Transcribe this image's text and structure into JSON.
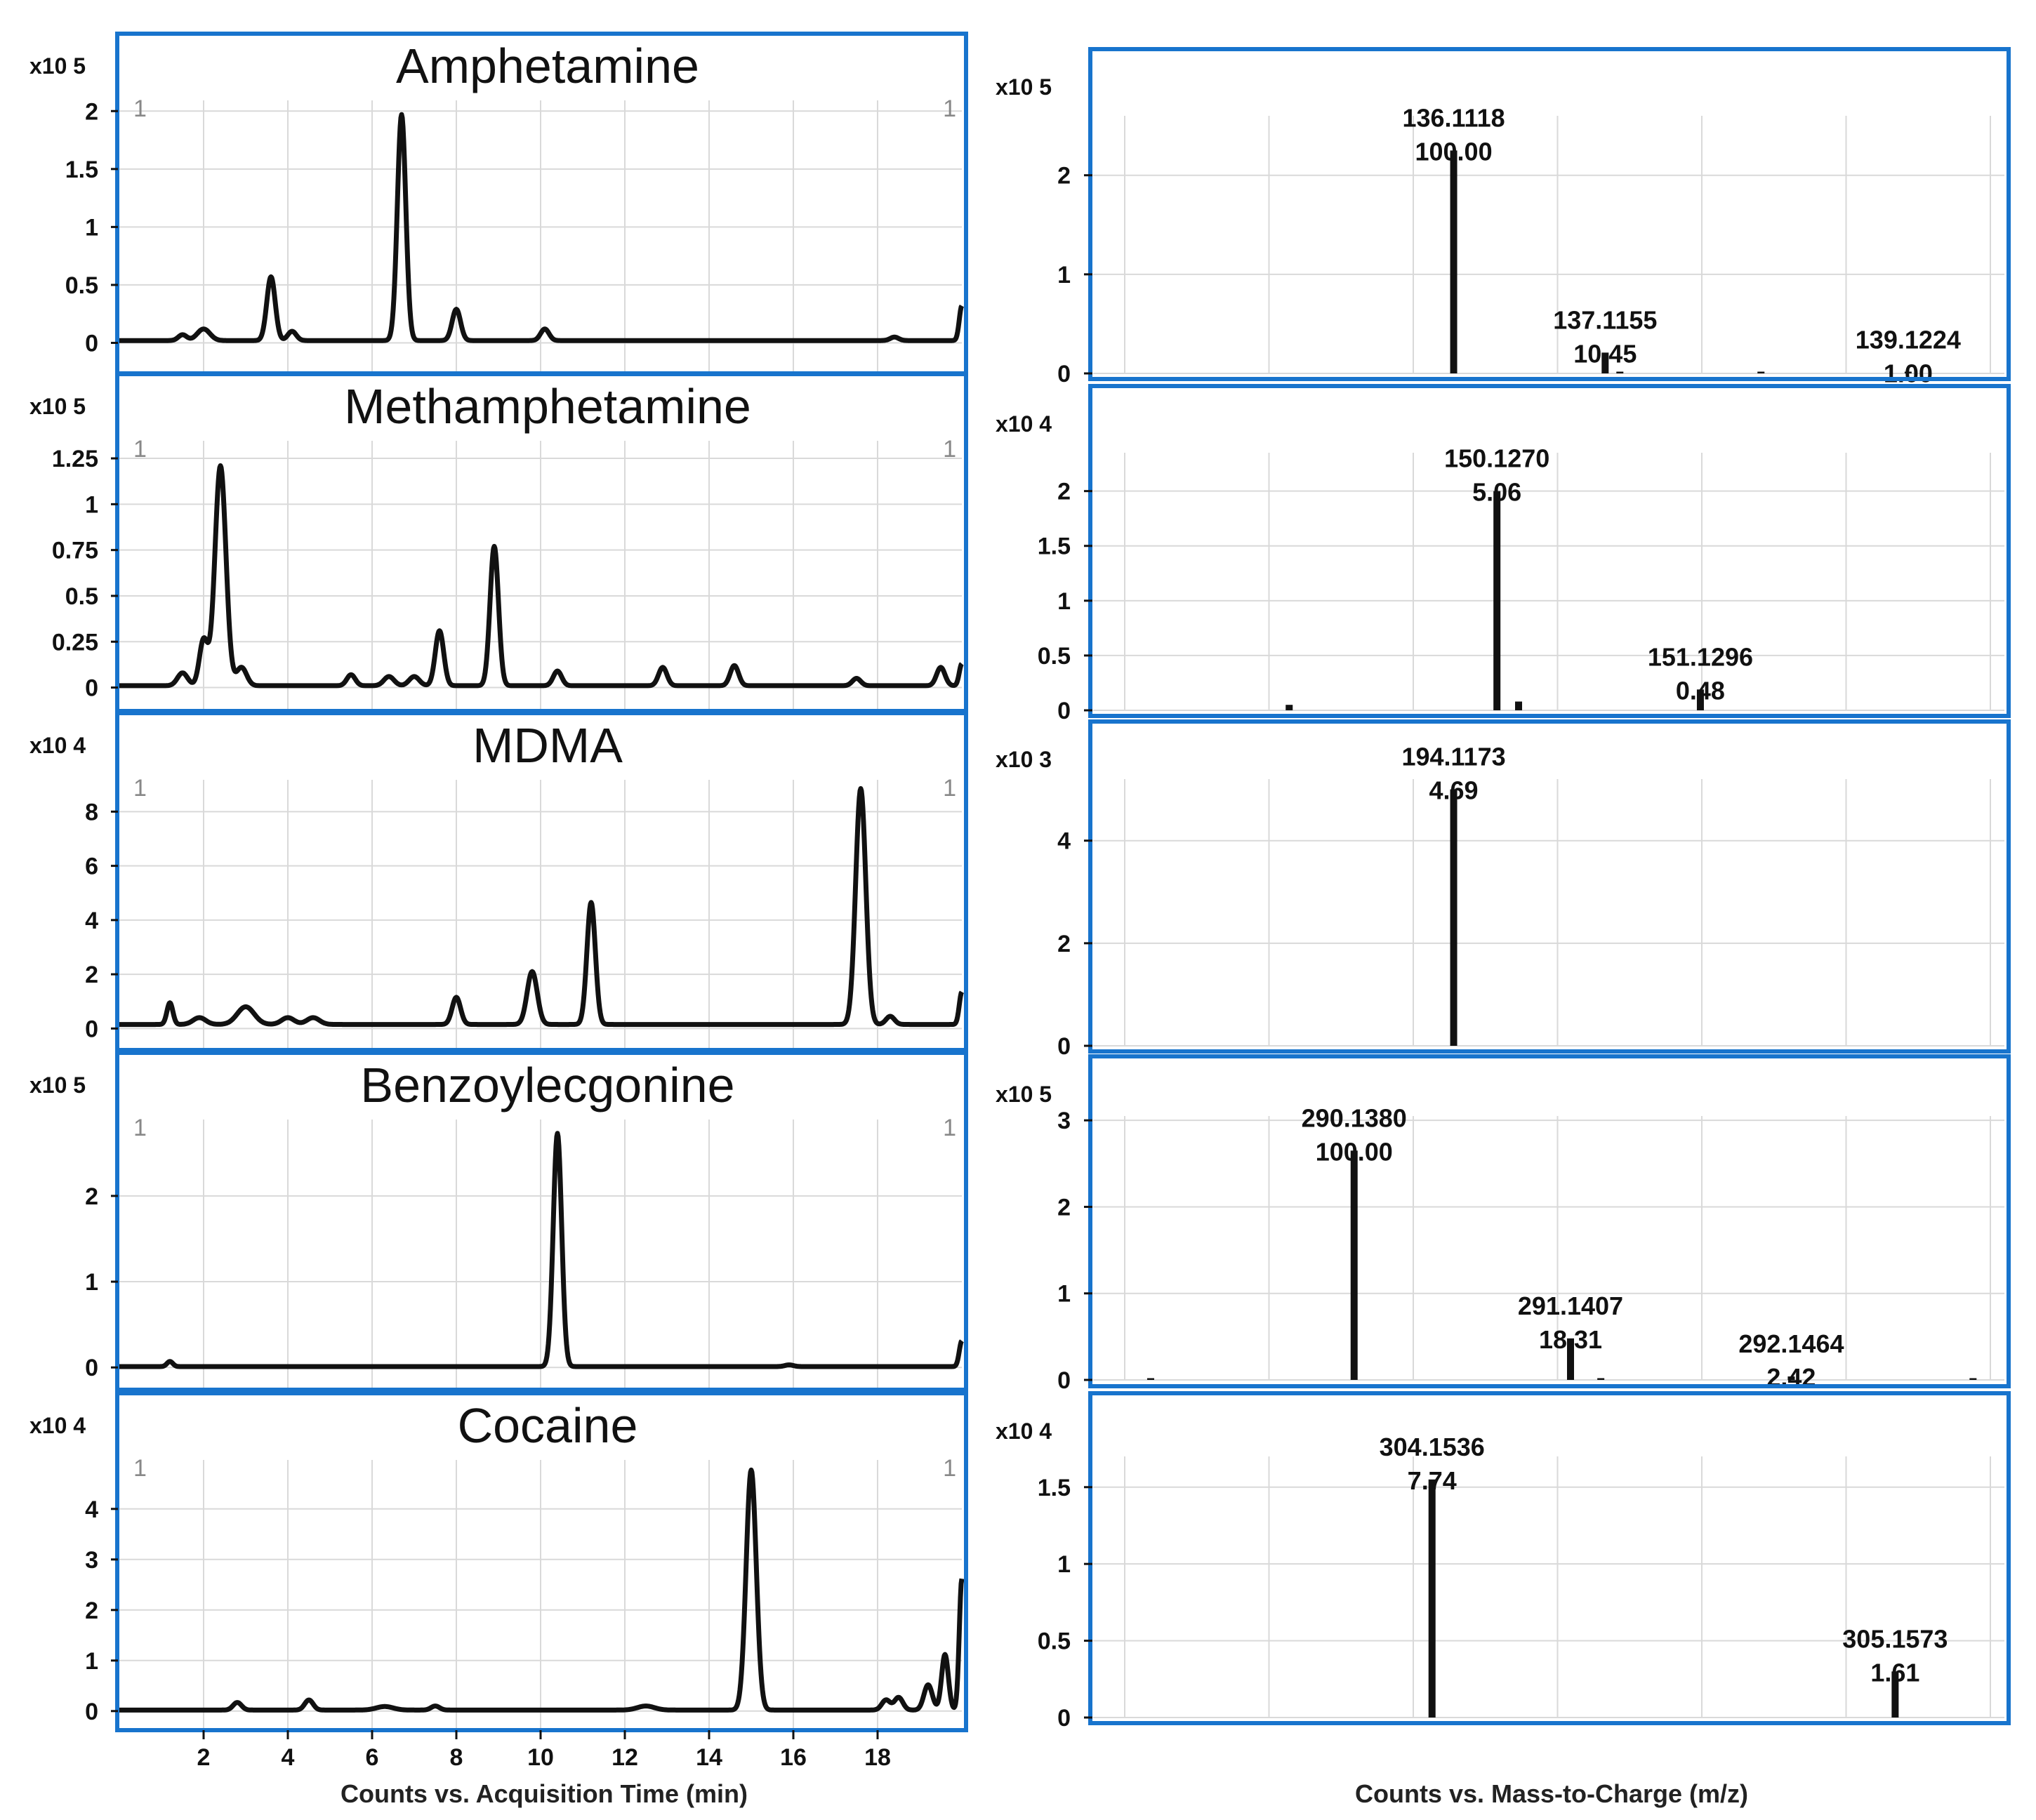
{
  "figure": {
    "x_caption_left": "Counts vs. Acquisition Time (min)",
    "x_caption_right": "Counts vs. Mass-to-Charge (m/z)",
    "frame_color": "#1874CD",
    "grid_color": "#D9D9D9",
    "trace_color": "#111111"
  },
  "chart_data": [
    {
      "type": "line",
      "panel": "chromatogram",
      "title": "Amphetamine",
      "scale_label": "x10 5",
      "corner_markers": [
        "1",
        "1"
      ],
      "xlim": [
        0,
        20
      ],
      "ylim": [
        -0.1,
        2.05
      ],
      "yticks": [
        0,
        0.5,
        1,
        1.5,
        2
      ],
      "ytick_labels": [
        "0",
        "0.5",
        "1",
        "1.5",
        "2"
      ],
      "baseline": 0.02,
      "end_rise": 0.3,
      "peaks": [
        {
          "t": 1.5,
          "h": 0.05,
          "w": 0.1
        },
        {
          "t": 2.0,
          "h": 0.1,
          "w": 0.15
        },
        {
          "t": 3.6,
          "h": 0.55,
          "w": 0.1
        },
        {
          "t": 4.1,
          "h": 0.08,
          "w": 0.1
        },
        {
          "t": 6.7,
          "h": 1.95,
          "w": 0.1
        },
        {
          "t": 8.0,
          "h": 0.27,
          "w": 0.1
        },
        {
          "t": 10.1,
          "h": 0.1,
          "w": 0.1
        },
        {
          "t": 18.4,
          "h": 0.03,
          "w": 0.1
        }
      ]
    },
    {
      "type": "line",
      "panel": "chromatogram",
      "title": "Methamphetamine",
      "scale_label": "x10 5",
      "corner_markers": [
        "1",
        "1"
      ],
      "xlim": [
        0,
        20
      ],
      "ylim": [
        -0.04,
        1.3
      ],
      "yticks": [
        0,
        0.25,
        0.5,
        0.75,
        1,
        1.25
      ],
      "ytick_labels": [
        "0",
        "0.25",
        "0.5",
        "0.75",
        "1",
        "1.25"
      ],
      "baseline": 0.01,
      "end_rise": 0.12,
      "peaks": [
        {
          "t": 1.5,
          "h": 0.07,
          "w": 0.12
        },
        {
          "t": 2.0,
          "h": 0.25,
          "w": 0.1
        },
        {
          "t": 2.4,
          "h": 1.2,
          "w": 0.13
        },
        {
          "t": 2.9,
          "h": 0.1,
          "w": 0.12
        },
        {
          "t": 5.5,
          "h": 0.06,
          "w": 0.1
        },
        {
          "t": 6.4,
          "h": 0.05,
          "w": 0.12
        },
        {
          "t": 7.0,
          "h": 0.05,
          "w": 0.12
        },
        {
          "t": 7.6,
          "h": 0.3,
          "w": 0.1
        },
        {
          "t": 8.9,
          "h": 0.76,
          "w": 0.1
        },
        {
          "t": 10.4,
          "h": 0.08,
          "w": 0.1
        },
        {
          "t": 12.9,
          "h": 0.1,
          "w": 0.1
        },
        {
          "t": 14.6,
          "h": 0.11,
          "w": 0.1
        },
        {
          "t": 17.5,
          "h": 0.04,
          "w": 0.1
        },
        {
          "t": 19.5,
          "h": 0.1,
          "w": 0.1
        }
      ]
    },
    {
      "type": "line",
      "panel": "chromatogram",
      "title": "MDMA",
      "scale_label": "x10 4",
      "corner_markers": [
        "1",
        "1"
      ],
      "xlim": [
        0,
        20
      ],
      "ylim": [
        -0.25,
        9.2
      ],
      "yticks": [
        0,
        2,
        4,
        6,
        8
      ],
      "ytick_labels": [
        "0",
        "2",
        "4",
        "6",
        "8"
      ],
      "baseline": 0.15,
      "end_rise": 1.2,
      "peaks": [
        {
          "t": 1.2,
          "h": 0.8,
          "w": 0.07
        },
        {
          "t": 1.9,
          "h": 0.25,
          "w": 0.15
        },
        {
          "t": 3.0,
          "h": 0.65,
          "w": 0.2
        },
        {
          "t": 4.0,
          "h": 0.25,
          "w": 0.15
        },
        {
          "t": 4.6,
          "h": 0.25,
          "w": 0.15
        },
        {
          "t": 8.0,
          "h": 1.0,
          "w": 0.1
        },
        {
          "t": 9.8,
          "h": 1.95,
          "w": 0.12
        },
        {
          "t": 11.2,
          "h": 4.5,
          "w": 0.1
        },
        {
          "t": 17.6,
          "h": 8.7,
          "w": 0.12
        },
        {
          "t": 18.3,
          "h": 0.3,
          "w": 0.1
        }
      ]
    },
    {
      "type": "line",
      "panel": "chromatogram",
      "title": "Benzoylecgonine",
      "scale_label": "x10 5",
      "corner_markers": [
        "1",
        "1"
      ],
      "xlim": [
        0,
        20
      ],
      "ylim": [
        -0.08,
        2.85
      ],
      "yticks": [
        0,
        1,
        2
      ],
      "ytick_labels": [
        "0",
        "1",
        "2"
      ],
      "baseline": 0.01,
      "end_rise": 0.3,
      "peaks": [
        {
          "t": 1.2,
          "h": 0.06,
          "w": 0.07
        },
        {
          "t": 10.4,
          "h": 2.72,
          "w": 0.1
        },
        {
          "t": 15.9,
          "h": 0.02,
          "w": 0.1
        }
      ]
    },
    {
      "type": "line",
      "panel": "chromatogram",
      "title": "Cocaine",
      "scale_label": "x10 4",
      "corner_markers": [
        "1",
        "1"
      ],
      "xlim": [
        0,
        20
      ],
      "ylim": [
        -0.1,
        4.9
      ],
      "yticks": [
        0,
        1,
        2,
        3,
        4
      ],
      "ytick_labels": [
        "0",
        "1",
        "2",
        "3",
        "4"
      ],
      "baseline": 0.02,
      "end_rise": 2.6,
      "peaks": [
        {
          "t": 2.8,
          "h": 0.15,
          "w": 0.1
        },
        {
          "t": 4.5,
          "h": 0.2,
          "w": 0.1
        },
        {
          "t": 6.3,
          "h": 0.07,
          "w": 0.2
        },
        {
          "t": 7.5,
          "h": 0.08,
          "w": 0.1
        },
        {
          "t": 12.5,
          "h": 0.08,
          "w": 0.2
        },
        {
          "t": 15.0,
          "h": 4.75,
          "w": 0.12
        },
        {
          "t": 18.2,
          "h": 0.2,
          "w": 0.1
        },
        {
          "t": 18.5,
          "h": 0.25,
          "w": 0.1
        },
        {
          "t": 19.2,
          "h": 0.5,
          "w": 0.1
        },
        {
          "t": 19.6,
          "h": 1.1,
          "w": 0.08
        }
      ]
    },
    {
      "type": "bar",
      "panel": "spectrum",
      "scale_label": "x10 5",
      "ylim": [
        0,
        2.6
      ],
      "yticks": [
        0,
        1,
        2
      ],
      "ytick_labels": [
        "0",
        "1",
        "2"
      ],
      "bars": [
        {
          "x": 0.38,
          "v": 2.25,
          "mz": "136.1118",
          "rel": "100.00",
          "labeled": true
        },
        {
          "x": 0.555,
          "v": 0.21,
          "mz": "137.1155",
          "rel": "10.45",
          "labeled": true
        },
        {
          "x": 0.572,
          "v": 0.01,
          "labeled": false
        },
        {
          "x": 0.735,
          "v": 0.01,
          "labeled": false
        },
        {
          "x": 0.905,
          "v": 0.01,
          "mz": "139.1224",
          "rel": "1.00",
          "labeled": true
        }
      ]
    },
    {
      "type": "bar",
      "panel": "spectrum",
      "scale_label": "x10 4",
      "ylim": [
        0,
        2.35
      ],
      "yticks": [
        0,
        0.5,
        1,
        1.5,
        2
      ],
      "ytick_labels": [
        "0",
        "0.5",
        "1",
        "1.5",
        "2"
      ],
      "bars": [
        {
          "x": 0.19,
          "v": 0.05,
          "labeled": false
        },
        {
          "x": 0.43,
          "v": 2.0,
          "mz": "150.1270",
          "rel": "5.06",
          "labeled": true
        },
        {
          "x": 0.455,
          "v": 0.08,
          "labeled": false
        },
        {
          "x": 0.665,
          "v": 0.19,
          "mz": "151.1296",
          "rel": "0.48",
          "labeled": true
        }
      ]
    },
    {
      "type": "bar",
      "panel": "spectrum",
      "scale_label": "x10 3",
      "ylim": [
        0,
        5.2
      ],
      "yticks": [
        0,
        2,
        4
      ],
      "ytick_labels": [
        "0",
        "2",
        "4"
      ],
      "bars": [
        {
          "x": 0.38,
          "v": 5.0,
          "mz": "194.1173",
          "rel": "4.69",
          "labeled": true
        }
      ]
    },
    {
      "type": "bar",
      "panel": "spectrum",
      "scale_label": "x10 5",
      "ylim": [
        0,
        3.05
      ],
      "yticks": [
        0,
        1,
        2,
        3
      ],
      "ytick_labels": [
        "0",
        "1",
        "2",
        "3"
      ],
      "bars": [
        {
          "x": 0.03,
          "v": 0.01,
          "labeled": false
        },
        {
          "x": 0.265,
          "v": 2.65,
          "mz": "290.1380",
          "rel": "100.00",
          "labeled": true
        },
        {
          "x": 0.515,
          "v": 0.48,
          "mz": "291.1407",
          "rel": "18.31",
          "labeled": true
        },
        {
          "x": 0.55,
          "v": 0.01,
          "labeled": false
        },
        {
          "x": 0.77,
          "v": 0.04,
          "mz": "292.1464",
          "rel": "2.42",
          "labeled": true
        },
        {
          "x": 0.98,
          "v": 0.01,
          "labeled": false
        }
      ]
    },
    {
      "type": "bar",
      "panel": "spectrum",
      "scale_label": "x10 4",
      "ylim": [
        0,
        1.7
      ],
      "yticks": [
        0,
        0.5,
        1,
        1.5
      ],
      "ytick_labels": [
        "0",
        "0.5",
        "1",
        "1.5"
      ],
      "bars": [
        {
          "x": 0.355,
          "v": 1.55,
          "mz": "304.1536",
          "rel": "7.74",
          "labeled": true
        },
        {
          "x": 0.89,
          "v": 0.3,
          "mz": "305.1573",
          "rel": "1.61",
          "labeled": true
        }
      ]
    }
  ],
  "time_axis": {
    "ticks": [
      2,
      4,
      6,
      8,
      10,
      12,
      14,
      16,
      18
    ],
    "tick_labels": [
      "2",
      "4",
      "6",
      "8",
      "10",
      "12",
      "14",
      "16",
      "18"
    ]
  }
}
